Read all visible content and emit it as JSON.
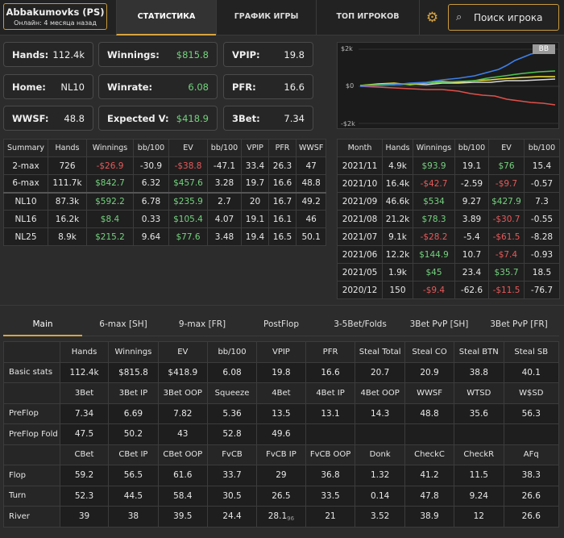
{
  "header": {
    "player_name": "Abbakumovks (PS)",
    "player_status": "Онлайн: 4 месяца назад",
    "tabs": [
      "СТАТИСТИКА",
      "ГРАФИК ИГРЫ",
      "ТОП ИГРОКОВ"
    ],
    "search_placeholder": "Поиск игрока"
  },
  "stat_boxes": [
    {
      "label": "Hands:",
      "value": "112.4k"
    },
    {
      "label": "Winnings:",
      "value": "$815.8"
    },
    {
      "label": "VPIP:",
      "value": "19.8"
    },
    {
      "label": "Home:",
      "value": "NL10"
    },
    {
      "label": "Winrate:",
      "value": "6.08"
    },
    {
      "label": "PFR:",
      "value": "16.6"
    },
    {
      "label": "WWSF:",
      "value": "48.8"
    },
    {
      "label": "Expected V:",
      "value": "$418.9"
    },
    {
      "label": "3Bet:",
      "value": "7.34"
    }
  ],
  "graph": {
    "badge": "BB",
    "y_labels": [
      "$2k",
      "$0",
      "-$2k"
    ],
    "colors": {
      "blue": "#3f7fe8",
      "green": "#4fc44f",
      "yellow": "#f2e23a",
      "red": "#e0504a",
      "white": "#d8d8d8"
    }
  },
  "summary_table": {
    "headers": [
      "Summary",
      "Hands",
      "Winnings",
      "bb/100",
      "EV",
      "bb/100",
      "VPIP",
      "PFR",
      "WWSF"
    ],
    "rows": [
      [
        "2-max",
        "726",
        "-$26.9",
        "-30.9",
        "-$38.8",
        "-47.1",
        "33.4",
        "26.3",
        "47"
      ],
      [
        "6-max",
        "111.7k",
        "$842.7",
        "6.32",
        "$457.6",
        "3.28",
        "19.7",
        "16.6",
        "48.8"
      ],
      [
        "NL10",
        "87.3k",
        "$592.2",
        "6.78",
        "$235.9",
        "2.7",
        "20",
        "16.7",
        "49.2"
      ],
      [
        "NL16",
        "16.2k",
        "$8.4",
        "0.33",
        "$105.4",
        "4.07",
        "19.1",
        "16.1",
        "46"
      ],
      [
        "NL25",
        "8.9k",
        "$215.2",
        "9.64",
        "$77.6",
        "3.48",
        "19.4",
        "16.5",
        "50.1"
      ]
    ]
  },
  "month_table": {
    "headers": [
      "Month",
      "Hands",
      "Winnings",
      "bb/100",
      "EV",
      "bb/100"
    ],
    "rows": [
      [
        "2021/11",
        "4.9k",
        "$93.9",
        "19.1",
        "$76",
        "15.4"
      ],
      [
        "2021/10",
        "16.4k",
        "-$42.7",
        "-2.59",
        "-$9.7",
        "-0.57"
      ],
      [
        "2021/09",
        "46.6k",
        "$534",
        "9.27",
        "$427.9",
        "7.3"
      ],
      [
        "2021/08",
        "21.2k",
        "$78.3",
        "3.89",
        "-$30.7",
        "-0.55"
      ],
      [
        "2021/07",
        "9.1k",
        "-$28.2",
        "-5.4",
        "-$61.5",
        "-8.28"
      ],
      [
        "2021/06",
        "12.2k",
        "$144.9",
        "10.7",
        "-$7.4",
        "-0.93"
      ],
      [
        "2021/05",
        "1.9k",
        "$45",
        "23.4",
        "$35.7",
        "18.5"
      ],
      [
        "2020/12",
        "150",
        "-$9.4",
        "-62.6",
        "-$11.5",
        "-76.7"
      ]
    ]
  },
  "bottom_tabs": [
    "Main",
    "6-max [SH]",
    "9-max [FR]",
    "PostFlop",
    "3-5Bet/Folds",
    "3Bet PvP [SH]",
    "3Bet PvP [FR]"
  ],
  "main_table": {
    "sections": [
      {
        "headers": [
          "Hands",
          "Winnings",
          "EV",
          "bb/100",
          "VPIP",
          "PFR",
          "Steal Total",
          "Steal CO",
          "Steal BTN",
          "Steal SB"
        ],
        "rows": [
          {
            "label": "Basic stats",
            "values": [
              "112.4k",
              "$815.8",
              "$418.9",
              "6.08",
              "19.8",
              "16.6",
              "20.7",
              "20.9",
              "38.8",
              "40.1"
            ]
          }
        ]
      },
      {
        "headers": [
          "3Bet",
          "3Bet IP",
          "3Bet OOP",
          "Squeeze",
          "4Bet",
          "4Bet IP",
          "4Bet OOP",
          "WWSF",
          "WTSD",
          "W$SD"
        ],
        "rows": [
          {
            "label": "PreFlop",
            "values": [
              "7.34",
              "6.69",
              "7.82",
              "5.36",
              "13.5",
              "13.1",
              "14.3",
              "48.8",
              "35.6",
              "56.3"
            ]
          },
          {
            "label": "PreFlop Fold",
            "values": [
              "47.5",
              "50.2",
              "43",
              "52.8",
              "49.6",
              "",
              "",
              "",
              "",
              ""
            ]
          }
        ]
      },
      {
        "headers": [
          "CBet",
          "CBet IP",
          "CBet OOP",
          "FvCB",
          "FvCB IP",
          "FvCB OOP",
          "Donk",
          "CheckC",
          "CheckR",
          "AFq"
        ],
        "rows": [
          {
            "label": "Flop",
            "values": [
              "59.2",
              "56.5",
              "61.6",
              "33.7",
              "29",
              "36.8",
              "1.32",
              "41.2",
              "11.5",
              "38.3"
            ]
          },
          {
            "label": "Turn",
            "values": [
              "52.3",
              "44.5",
              "58.4",
              "30.5",
              "26.5",
              "33.5",
              "0.14",
              "47.8",
              "9.24",
              "26.6"
            ]
          },
          {
            "label": "River",
            "values": [
              "39",
              "38",
              "39.5",
              "24.4",
              "28.1",
              "21",
              "3.52",
              "38.9",
              "12",
              "26.6"
            ]
          }
        ]
      }
    ],
    "river_fvcb_ip_sub": "96"
  }
}
